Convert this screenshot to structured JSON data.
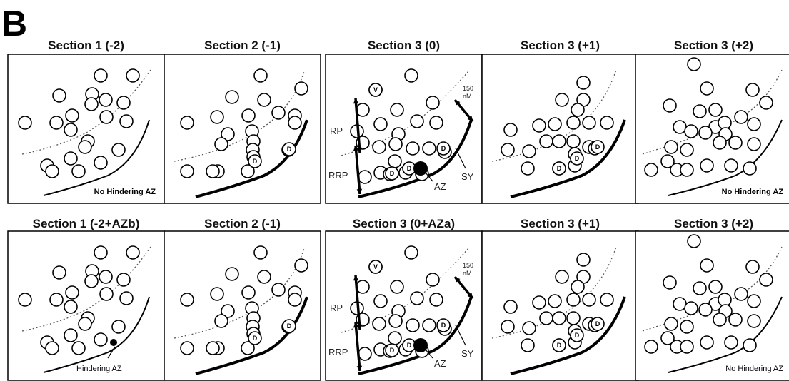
{
  "figure_letter": "B",
  "rows": [
    {
      "panels": [
        {
          "title": "Section 1 (-2)",
          "note": "No Hindering AZ"
        },
        {
          "title": "Section 2 (-1)",
          "note": ""
        },
        {
          "title": "Section 3 (0)",
          "note": ""
        },
        {
          "title": "Section 3 (+1)",
          "note": ""
        },
        {
          "title": "Section 3 (+2)",
          "note": "No Hindering AZ"
        }
      ]
    },
    {
      "panels": [
        {
          "title": "Section 1 (-2+AZb)",
          "note": "Hindering AZ"
        },
        {
          "title": "Section 2 (-1)",
          "note": ""
        },
        {
          "title": "Section 3 (0+AZa)",
          "note": ""
        },
        {
          "title": "Section 3 (+1)",
          "note": ""
        },
        {
          "title": "Section 3 (+2)",
          "note": "No Hindering AZ"
        }
      ]
    }
  ],
  "labels": {
    "rp": "RP",
    "rrp": "RRP",
    "az": "AZ",
    "sy": "SY",
    "conc_value": "150",
    "conc_unit": "nM",
    "vesicle_v": "V",
    "vesicle_d": "D"
  }
}
